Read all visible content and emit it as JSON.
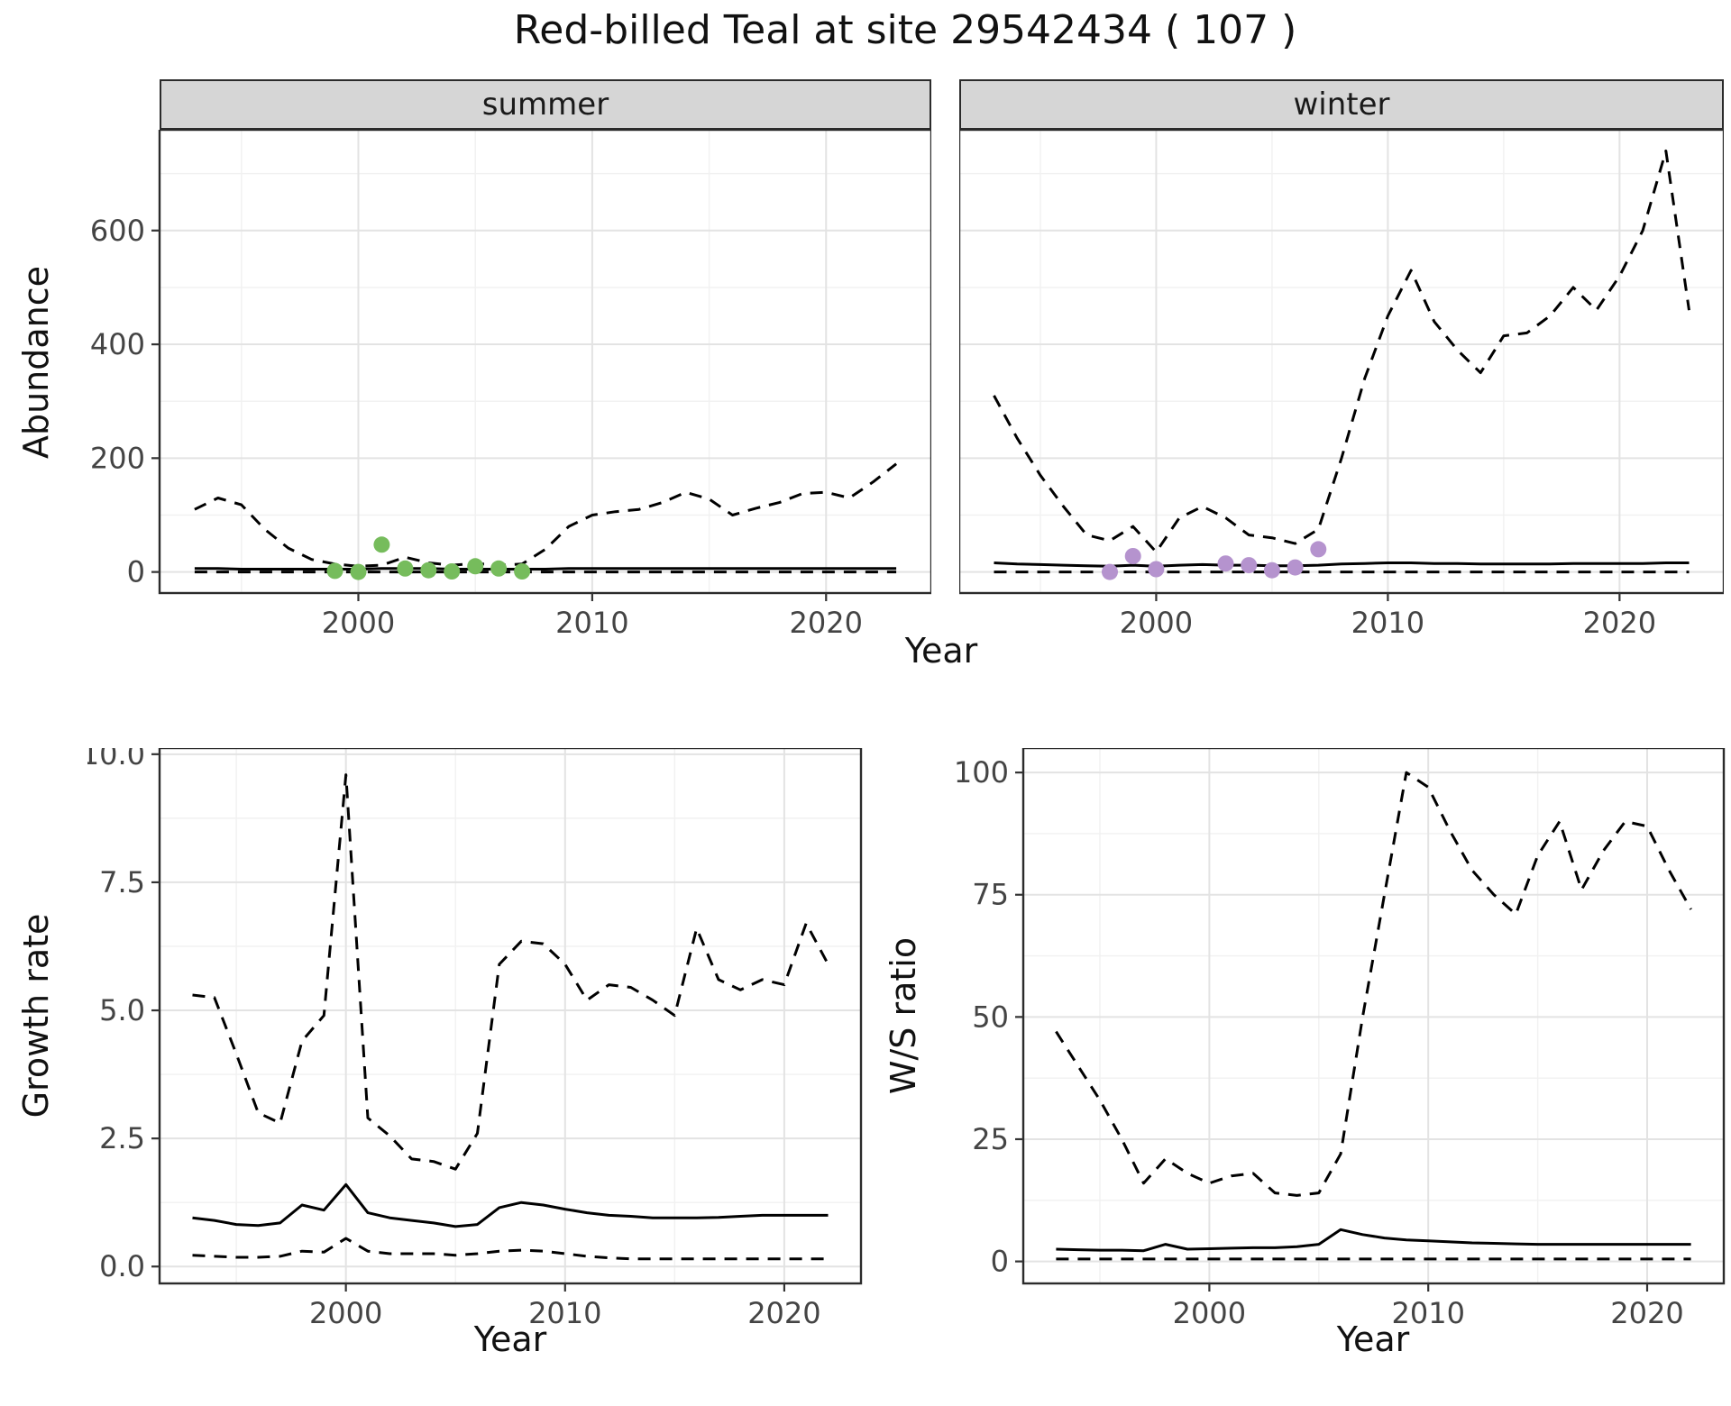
{
  "title": "Red-billed Teal at site 29542434 ( 107 )",
  "colors": {
    "line": "#000000",
    "summer_points": "#76bc5c",
    "winter_points": "#b593ce",
    "strip_bg": "#d6d6d6",
    "strip_border": "#2b2b2b",
    "panel_border": "#2b2b2b",
    "grid_major": "#e3e3e3",
    "grid_minor": "#f1f1f1",
    "tick_text": "#444444"
  },
  "chart_data": [
    {
      "id": "abundance_summer",
      "type": "line",
      "facet": "summer",
      "xlabel": "Year",
      "ylabel": "Abundance",
      "xlim": [
        1991.5,
        2024.5
      ],
      "ylim": [
        -37,
        777
      ],
      "xticks": [
        2000,
        2010,
        2020
      ],
      "xtick_labels": [
        "2000",
        "2010",
        "2020"
      ],
      "xticks_minor": [
        1995,
        2005,
        2015
      ],
      "yticks": [
        0,
        200,
        400,
        600
      ],
      "ytick_labels": [
        "0",
        "200",
        "400",
        "600"
      ],
      "yticks_minor": [
        100,
        300,
        500,
        700
      ],
      "show_y_labels": true,
      "grid": true,
      "legend": "none",
      "x": [
        1993,
        1994,
        1995,
        1996,
        1997,
        1998,
        1999,
        2000,
        2001,
        2002,
        2003,
        2004,
        2005,
        2006,
        2007,
        2008,
        2009,
        2010,
        2011,
        2012,
        2013,
        2014,
        2015,
        2016,
        2017,
        2018,
        2019,
        2020,
        2021,
        2022,
        2023
      ],
      "series": [
        {
          "name": "upper_95ci",
          "style": "dashed",
          "values": [
            110,
            130,
            118,
            75,
            42,
            22,
            14,
            10,
            12,
            26,
            16,
            12,
            15,
            12,
            14,
            40,
            80,
            100,
            106,
            110,
            122,
            140,
            128,
            100,
            112,
            122,
            138,
            140,
            130,
            158,
            190
          ]
        },
        {
          "name": "median",
          "style": "solid",
          "values": [
            6,
            6,
            5,
            5,
            5,
            5,
            5,
            5,
            6,
            6,
            6,
            5,
            5,
            5,
            5,
            5,
            6,
            6,
            6,
            6,
            6,
            6,
            6,
            6,
            6,
            6,
            6,
            6,
            6,
            6,
            6
          ]
        },
        {
          "name": "lower_95ci",
          "style": "dashed",
          "values": [
            0,
            0,
            0,
            0,
            0,
            0,
            0,
            0,
            0,
            0,
            0,
            0,
            0,
            0,
            0,
            0,
            0,
            0,
            0,
            0,
            0,
            0,
            0,
            0,
            0,
            0,
            0,
            0,
            0,
            0,
            0
          ]
        }
      ],
      "points": {
        "name": "observed_counts",
        "color": "#76bc5c",
        "x": [
          1999,
          2000,
          2001,
          2002,
          2003,
          2004,
          2005,
          2006,
          2007
        ],
        "y": [
          2,
          0,
          48,
          6,
          3,
          1,
          10,
          6,
          1
        ]
      }
    },
    {
      "id": "abundance_winter",
      "type": "line",
      "facet": "winter",
      "xlabel": "Year",
      "ylabel": "Abundance",
      "xlim": [
        1991.5,
        2024.5
      ],
      "ylim": [
        -37,
        777
      ],
      "xticks": [
        2000,
        2010,
        2020
      ],
      "xtick_labels": [
        "2000",
        "2010",
        "2020"
      ],
      "xticks_minor": [
        1995,
        2005,
        2015
      ],
      "yticks": [
        0,
        200,
        400,
        600
      ],
      "ytick_labels": [
        "0",
        "200",
        "400",
        "600"
      ],
      "yticks_minor": [
        100,
        300,
        500,
        700
      ],
      "show_y_labels": false,
      "grid": true,
      "legend": "none",
      "x": [
        1993,
        1994,
        1995,
        1996,
        1997,
        1998,
        1999,
        2000,
        2001,
        2002,
        2003,
        2004,
        2005,
        2006,
        2007,
        2008,
        2009,
        2010,
        2011,
        2012,
        2013,
        2014,
        2015,
        2016,
        2017,
        2018,
        2019,
        2020,
        2021,
        2022,
        2023
      ],
      "series": [
        {
          "name": "upper_95ci",
          "style": "dashed",
          "values": [
            310,
            235,
            170,
            115,
            65,
            55,
            80,
            35,
            95,
            115,
            95,
            65,
            60,
            50,
            75,
            200,
            340,
            450,
            530,
            440,
            390,
            350,
            415,
            420,
            450,
            500,
            460,
            520,
            600,
            740,
            460
          ]
        },
        {
          "name": "median",
          "style": "solid",
          "values": [
            16,
            14,
            13,
            12,
            11,
            10,
            12,
            10,
            12,
            13,
            12,
            12,
            11,
            11,
            12,
            14,
            15,
            16,
            16,
            15,
            15,
            14,
            14,
            14,
            14,
            15,
            15,
            15,
            15,
            16,
            16
          ]
        },
        {
          "name": "lower_95ci",
          "style": "dashed",
          "values": [
            0,
            0,
            0,
            0,
            0,
            0,
            0,
            0,
            0,
            0,
            0,
            0,
            0,
            0,
            0,
            0,
            0,
            0,
            0,
            0,
            0,
            0,
            0,
            0,
            0,
            0,
            0,
            0,
            0,
            0,
            0
          ]
        }
      ],
      "points": {
        "name": "observed_counts",
        "color": "#b593ce",
        "x": [
          1998,
          1999,
          2000,
          2003,
          2004,
          2005,
          2006,
          2007
        ],
        "y": [
          0,
          28,
          5,
          15,
          12,
          3,
          8,
          40
        ]
      }
    },
    {
      "id": "growth_rate",
      "type": "line",
      "facet": "",
      "xlabel": "Year",
      "ylabel": "Growth rate",
      "xlim": [
        1991.5,
        2023.5
      ],
      "ylim": [
        -0.33,
        10.12
      ],
      "xticks": [
        2000,
        2010,
        2020
      ],
      "xtick_labels": [
        "2000",
        "2010",
        "2020"
      ],
      "xticks_minor": [
        1995,
        2005,
        2015
      ],
      "yticks": [
        0,
        2.5,
        5,
        7.5,
        10
      ],
      "ytick_labels": [
        "0.0",
        "2.5",
        "5.0",
        "7.5",
        "10.0"
      ],
      "yticks_minor": [
        1.25,
        3.75,
        6.25,
        8.75
      ],
      "show_y_labels": true,
      "grid": true,
      "legend": "none",
      "x": [
        1993,
        1994,
        1995,
        1996,
        1997,
        1998,
        1999,
        2000,
        2001,
        2002,
        2003,
        2004,
        2005,
        2006,
        2007,
        2008,
        2009,
        2010,
        2011,
        2012,
        2013,
        2014,
        2015,
        2016,
        2017,
        2018,
        2019,
        2020,
        2021,
        2022
      ],
      "series": [
        {
          "name": "upper_95ci",
          "style": "dashed",
          "values": [
            5.3,
            5.25,
            4.15,
            3.0,
            2.8,
            4.4,
            4.9,
            9.6,
            2.9,
            2.55,
            2.1,
            2.05,
            1.9,
            2.6,
            5.9,
            6.35,
            6.3,
            5.9,
            5.2,
            5.5,
            5.45,
            5.2,
            4.9,
            6.6,
            5.6,
            5.4,
            5.6,
            5.5,
            6.7,
            5.9
          ]
        },
        {
          "name": "median",
          "style": "solid",
          "values": [
            0.95,
            0.9,
            0.82,
            0.8,
            0.85,
            1.2,
            1.1,
            1.6,
            1.05,
            0.95,
            0.9,
            0.85,
            0.78,
            0.82,
            1.15,
            1.25,
            1.2,
            1.12,
            1.05,
            1.0,
            0.98,
            0.95,
            0.95,
            0.95,
            0.96,
            0.98,
            1.0,
            1.0,
            1.0,
            1.0
          ]
        },
        {
          "name": "lower_95ci",
          "style": "dashed",
          "values": [
            0.22,
            0.2,
            0.18,
            0.18,
            0.2,
            0.3,
            0.28,
            0.55,
            0.3,
            0.25,
            0.25,
            0.25,
            0.22,
            0.25,
            0.3,
            0.32,
            0.3,
            0.25,
            0.2,
            0.17,
            0.15,
            0.15,
            0.15,
            0.15,
            0.15,
            0.15,
            0.15,
            0.15,
            0.15,
            0.15
          ]
        }
      ],
      "points": null
    },
    {
      "id": "ws_ratio",
      "type": "line",
      "facet": "",
      "xlabel": "Year",
      "ylabel": "W/S ratio",
      "xlim": [
        1991.5,
        2023.5
      ],
      "ylim": [
        -4.5,
        105
      ],
      "xticks": [
        2000,
        2010,
        2020
      ],
      "xtick_labels": [
        "2000",
        "2010",
        "2020"
      ],
      "xticks_minor": [
        1995,
        2005,
        2015
      ],
      "yticks": [
        0,
        25,
        50,
        75,
        100
      ],
      "ytick_labels": [
        "0",
        "25",
        "50",
        "75",
        "100"
      ],
      "yticks_minor": [
        12.5,
        37.5,
        62.5,
        87.5
      ],
      "show_y_labels": true,
      "grid": true,
      "legend": "none",
      "x": [
        1993,
        1994,
        1995,
        1996,
        1997,
        1998,
        1999,
        2000,
        2001,
        2002,
        2003,
        2004,
        2005,
        2006,
        2007,
        2008,
        2009,
        2010,
        2011,
        2012,
        2013,
        2014,
        2015,
        2016,
        2017,
        2018,
        2019,
        2020,
        2021,
        2022
      ],
      "series": [
        {
          "name": "upper_95ci",
          "style": "dashed",
          "values": [
            47,
            40,
            33,
            25,
            16,
            21,
            18,
            16,
            17.5,
            18,
            14,
            13.5,
            14,
            22,
            50,
            75,
            100,
            97,
            88,
            80,
            75,
            71,
            83,
            90,
            76,
            84,
            90,
            89,
            80,
            72
          ]
        },
        {
          "name": "median",
          "style": "solid",
          "values": [
            2.5,
            2.4,
            2.3,
            2.3,
            2.2,
            3.5,
            2.5,
            2.6,
            2.7,
            2.8,
            2.8,
            3.0,
            3.5,
            6.5,
            5.5,
            4.8,
            4.4,
            4.2,
            4.0,
            3.8,
            3.7,
            3.6,
            3.5,
            3.5,
            3.5,
            3.5,
            3.5,
            3.5,
            3.5,
            3.5
          ]
        },
        {
          "name": "lower_95ci",
          "style": "dashed",
          "values": [
            0.5,
            0.5,
            0.5,
            0.5,
            0.5,
            0.5,
            0.5,
            0.5,
            0.5,
            0.5,
            0.5,
            0.5,
            0.5,
            0.5,
            0.5,
            0.5,
            0.5,
            0.5,
            0.5,
            0.5,
            0.5,
            0.5,
            0.5,
            0.5,
            0.5,
            0.5,
            0.5,
            0.5,
            0.5,
            0.5
          ]
        }
      ],
      "points": null
    }
  ]
}
